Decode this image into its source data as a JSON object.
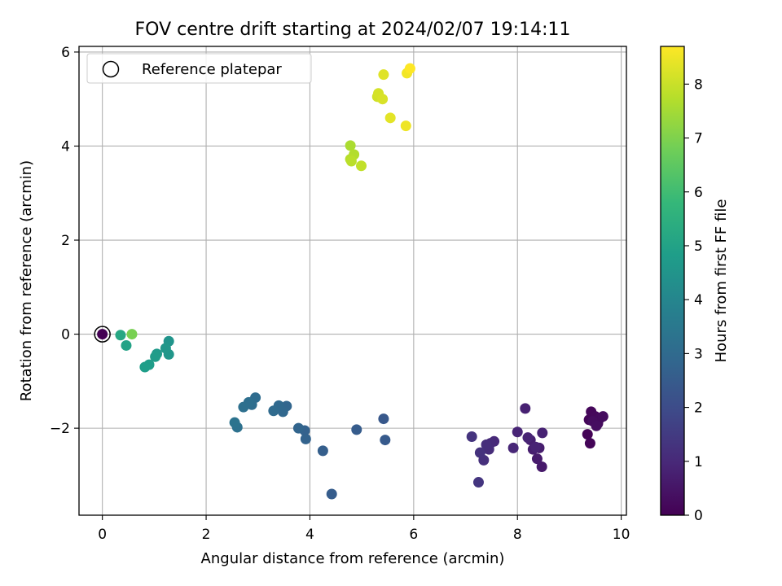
{
  "chart_data": {
    "type": "scatter",
    "title": "FOV centre drift starting at 2024/02/07 19:14:11",
    "xlabel": "Angular distance from reference (arcmin)",
    "ylabel": "Rotation from reference (arcmin)",
    "xlim": [
      -0.45,
      10.1
    ],
    "ylim": [
      -3.85,
      6.12
    ],
    "xticks": [
      0,
      2,
      4,
      6,
      8,
      10
    ],
    "yticks": [
      -2,
      0,
      2,
      4,
      6
    ],
    "grid": true,
    "legend": {
      "placement": "top-left",
      "entries": [
        "Reference platepar"
      ]
    },
    "reference_point": {
      "x": 0,
      "y": 0
    },
    "colorbar": {
      "label": "Hours from first FF file",
      "colormap": "viridis",
      "range": [
        0,
        8.7
      ],
      "ticks": [
        0,
        1,
        2,
        3,
        4,
        5,
        6,
        7,
        8
      ]
    },
    "colormap_stops": [
      "#440154",
      "#482878",
      "#3e4a89",
      "#31688e",
      "#26828e",
      "#1f9e89",
      "#35b779",
      "#6ece58",
      "#b5de2b",
      "#fde725"
    ],
    "series": [
      {
        "points": [
          [
            0.0,
            0.0,
            0.0
          ],
          [
            9.35,
            -2.13,
            0.05
          ],
          [
            9.4,
            -2.32,
            0.1
          ],
          [
            9.38,
            -1.82,
            0.12
          ],
          [
            9.42,
            -1.65,
            0.15
          ],
          [
            9.5,
            -1.75,
            0.2
          ],
          [
            9.55,
            -1.9,
            0.22
          ],
          [
            9.6,
            -1.78,
            0.25
          ],
          [
            9.65,
            -1.75,
            0.28
          ],
          [
            9.45,
            -1.85,
            0.3
          ],
          [
            9.52,
            -1.95,
            0.32
          ],
          [
            8.47,
            -2.82,
            0.6
          ],
          [
            8.38,
            -2.65,
            0.65
          ],
          [
            8.42,
            -2.42,
            0.7
          ],
          [
            8.3,
            -2.45,
            0.72
          ],
          [
            8.25,
            -2.25,
            0.75
          ],
          [
            8.15,
            -1.58,
            0.8
          ],
          [
            8.48,
            -2.1,
            0.82
          ],
          [
            8.35,
            -2.4,
            0.85
          ],
          [
            8.2,
            -2.2,
            0.88
          ],
          [
            8.0,
            -2.08,
            0.9
          ],
          [
            7.92,
            -2.42,
            0.95
          ],
          [
            7.55,
            -2.28,
            1.0
          ],
          [
            7.48,
            -2.32,
            1.05
          ],
          [
            7.45,
            -2.45,
            1.1
          ],
          [
            7.4,
            -2.35,
            1.15
          ],
          [
            7.35,
            -2.68,
            1.2
          ],
          [
            7.28,
            -2.52,
            1.25
          ],
          [
            7.12,
            -2.18,
            1.3
          ],
          [
            7.25,
            -3.15,
            1.35
          ],
          [
            5.42,
            -1.8,
            2.4
          ],
          [
            5.45,
            -2.25,
            2.45
          ],
          [
            4.9,
            -2.03,
            2.5
          ],
          [
            4.42,
            -3.4,
            2.55
          ],
          [
            4.25,
            -2.48,
            2.6
          ],
          [
            3.9,
            -2.05,
            2.7
          ],
          [
            3.92,
            -2.23,
            2.75
          ],
          [
            3.78,
            -2.0,
            2.8
          ],
          [
            3.55,
            -1.53,
            2.85
          ],
          [
            3.48,
            -1.65,
            2.9
          ],
          [
            3.4,
            -1.52,
            2.95
          ],
          [
            3.3,
            -1.63,
            3.0
          ],
          [
            2.95,
            -1.35,
            3.05
          ],
          [
            2.88,
            -1.5,
            3.1
          ],
          [
            2.82,
            -1.45,
            3.15
          ],
          [
            2.72,
            -1.55,
            3.2
          ],
          [
            2.6,
            -1.98,
            3.25
          ],
          [
            2.55,
            -1.88,
            3.3
          ],
          [
            1.28,
            -0.15,
            4.5
          ],
          [
            1.28,
            -0.43,
            4.55
          ],
          [
            1.22,
            -0.3,
            4.6
          ],
          [
            1.05,
            -0.42,
            4.7
          ],
          [
            1.02,
            -0.48,
            4.75
          ],
          [
            0.9,
            -0.65,
            4.8
          ],
          [
            0.82,
            -0.7,
            4.85
          ],
          [
            0.46,
            -0.24,
            5.0
          ],
          [
            0.35,
            -0.02,
            5.2
          ],
          [
            0.57,
            0.0,
            6.9
          ],
          [
            4.78,
            4.01,
            7.6
          ],
          [
            4.85,
            3.82,
            7.7
          ],
          [
            4.8,
            3.68,
            7.8
          ],
          [
            4.78,
            3.72,
            7.75
          ],
          [
            4.99,
            3.58,
            7.9
          ],
          [
            5.3,
            5.05,
            8.1
          ],
          [
            5.32,
            5.12,
            8.15
          ],
          [
            5.4,
            5.0,
            8.2
          ],
          [
            5.42,
            5.52,
            8.3
          ],
          [
            5.55,
            4.6,
            8.35
          ],
          [
            5.85,
            4.43,
            8.5
          ],
          [
            5.87,
            5.55,
            8.55
          ],
          [
            5.93,
            5.65,
            8.7
          ]
        ]
      }
    ]
  }
}
